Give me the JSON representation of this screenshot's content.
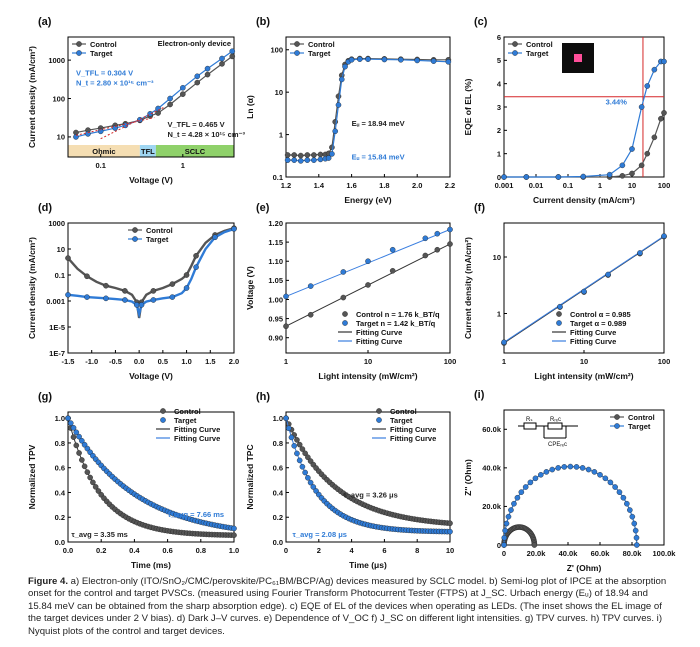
{
  "colors": {
    "control": "#555555",
    "target": "#2f7bd6",
    "fit_control": "#333333",
    "fit_target": "#3b7fe0",
    "ohmic": "#f5deb3",
    "tfl": "#9fd6f2",
    "sclc": "#8fd16a",
    "red": "#d62728"
  },
  "chart_data": [
    {
      "id": "a",
      "panel_label": "(a)",
      "type": "line",
      "title": "Electron-only device",
      "xlabel": "Voltage (V)",
      "ylabel": "Current density (mA/cm²)",
      "xscale": "log",
      "yscale": "log",
      "xlim": [
        0.04,
        4.2
      ],
      "ylim": [
        3,
        4000
      ],
      "xticks": [
        0.1,
        1
      ],
      "xtick_labels": [
        "0.1",
        "1"
      ],
      "yticks": [
        10,
        100,
        1000
      ],
      "ytick_labels": [
        "10",
        "100",
        "1000"
      ],
      "legend": [
        "Control",
        "Target"
      ],
      "legend_position": "top-left",
      "series": [
        {
          "name": "Control",
          "x": [
            0.05,
            0.07,
            0.1,
            0.15,
            0.2,
            0.3,
            0.4,
            0.5,
            0.7,
            1.0,
            1.5,
            2.0,
            3.0,
            4.0
          ],
          "y": [
            13,
            15,
            17,
            20,
            22,
            27,
            35,
            42,
            70,
            130,
            260,
            420,
            800,
            1250
          ]
        },
        {
          "name": "Target",
          "x": [
            0.05,
            0.07,
            0.1,
            0.15,
            0.2,
            0.3,
            0.4,
            0.5,
            0.7,
            1.0,
            1.5,
            2.0,
            3.0,
            4.0
          ],
          "y": [
            10,
            12,
            14,
            17,
            20,
            28,
            40,
            55,
            100,
            190,
            380,
            600,
            1100,
            1700
          ]
        }
      ],
      "regions": [
        {
          "label": "Ohmic",
          "from": 0.04,
          "to": 0.3
        },
        {
          "label": "TFL",
          "from": 0.3,
          "to": 0.47
        },
        {
          "label": "SCLC",
          "from": 0.47,
          "to": 4.2
        }
      ],
      "annotations": [
        {
          "lines": [
            "V_TFL = 0.304 V",
            "N_t = 2.80 × 10¹⁵ cm⁻³"
          ],
          "color": "target",
          "x": 0.055,
          "y": 400
        },
        {
          "lines": [
            "V_TFL = 0.465 V",
            "N_t = 4.28 × 10¹⁵ cm⁻³"
          ],
          "color": "control",
          "x": 0.65,
          "y": 18
        }
      ]
    },
    {
      "id": "b",
      "panel_label": "(b)",
      "type": "scatter",
      "xlabel": "Energy (eV)",
      "ylabel": "Ln (α)",
      "yscale": "log",
      "xlim": [
        1.2,
        2.2
      ],
      "ylim": [
        0.1,
        200
      ],
      "xticks": [
        1.2,
        1.4,
        1.6,
        1.8,
        2.0,
        2.2
      ],
      "xtick_labels": [
        "1.2",
        "1.4",
        "1.6",
        "1.8",
        "2.0",
        "2.2"
      ],
      "yticks": [
        0.1,
        1,
        10,
        100
      ],
      "ytick_labels": [
        "0.1",
        "1",
        "10",
        "100"
      ],
      "legend": [
        "Control",
        "Target"
      ],
      "legend_position": "top-left",
      "series": [
        {
          "name": "Control",
          "x": [
            1.21,
            1.25,
            1.29,
            1.33,
            1.37,
            1.41,
            1.44,
            1.46,
            1.48,
            1.5,
            1.52,
            1.54,
            1.56,
            1.58,
            1.6,
            1.65,
            1.7,
            1.8,
            1.9,
            2.0,
            2.1,
            2.19
          ],
          "y": [
            0.33,
            0.33,
            0.32,
            0.33,
            0.33,
            0.34,
            0.34,
            0.36,
            0.5,
            2,
            8,
            25,
            45,
            55,
            60,
            62,
            62,
            61,
            60,
            59,
            58,
            58
          ]
        },
        {
          "name": "Target",
          "x": [
            1.21,
            1.25,
            1.29,
            1.33,
            1.37,
            1.41,
            1.44,
            1.46,
            1.48,
            1.5,
            1.52,
            1.54,
            1.56,
            1.58,
            1.6,
            1.65,
            1.7,
            1.8,
            1.9,
            2.0,
            2.1,
            2.19
          ],
          "y": [
            0.25,
            0.25,
            0.24,
            0.25,
            0.25,
            0.26,
            0.27,
            0.28,
            0.35,
            1.2,
            5,
            20,
            40,
            52,
            58,
            60,
            60,
            59,
            58,
            56,
            54,
            52
          ]
        }
      ],
      "annotations": [
        {
          "lines": [
            "Eᵤ = 18.94 meV"
          ],
          "color": "control",
          "x": 1.6,
          "y": 1.6
        },
        {
          "lines": [
            "Eᵤ = 15.84 meV"
          ],
          "color": "target",
          "x": 1.6,
          "y": 0.26
        }
      ]
    },
    {
      "id": "c",
      "panel_label": "(c)",
      "type": "line",
      "xlabel": "Current density (mA/cm²)",
      "ylabel": "EQE of EL (%)",
      "xscale": "log",
      "xlim": [
        0.001,
        100
      ],
      "ylim": [
        0,
        6
      ],
      "xticks": [
        0.001,
        0.01,
        0.1,
        1,
        10,
        100
      ],
      "xtick_labels": [
        "0.001",
        "0.01",
        "0.1",
        "1",
        "10",
        "100"
      ],
      "yticks": [
        0,
        1,
        2,
        3,
        4,
        5,
        6
      ],
      "ytick_labels": [
        "0",
        "1",
        "2",
        "3",
        "4",
        "5",
        "6"
      ],
      "legend": [
        "Control",
        "Target"
      ],
      "legend_position": "top-left",
      "series": [
        {
          "name": "Control",
          "x": [
            0.001,
            0.005,
            0.05,
            0.3,
            2,
            5,
            10,
            20,
            30,
            50,
            80,
            100
          ],
          "y": [
            0,
            0,
            0,
            0,
            0,
            0.05,
            0.15,
            0.5,
            1.0,
            1.7,
            2.5,
            2.75
          ]
        },
        {
          "name": "Target",
          "x": [
            0.001,
            0.005,
            0.05,
            0.3,
            2,
            5,
            10,
            20,
            30,
            50,
            80,
            100
          ],
          "y": [
            0,
            0,
            0,
            0.02,
            0.1,
            0.5,
            1.2,
            3.0,
            3.9,
            4.6,
            4.95,
            4.95
          ]
        }
      ],
      "reference_lines": [
        {
          "axis": "y",
          "value": 3.44
        },
        {
          "axis": "x",
          "value": 22
        }
      ],
      "annotations": [
        {
          "lines": [
            "3.44%"
          ],
          "color": "target",
          "x": 1.5,
          "y": 3.1
        }
      ],
      "inset": "EL image of the target device (pink square on black)"
    },
    {
      "id": "d",
      "panel_label": "(d)",
      "type": "line",
      "xlabel": "Voltage (V)",
      "ylabel": "Current density (mA/cm²)",
      "yscale": "log",
      "xlim": [
        -1.5,
        2.0
      ],
      "ylim": [
        1e-07,
        1000
      ],
      "xticks": [
        -1.5,
        -1.0,
        -0.5,
        0.0,
        0.5,
        1.0,
        1.5,
        2.0
      ],
      "xtick_labels": [
        "-1.5",
        "-1.0",
        "-0.5",
        "0.0",
        "0.5",
        "1.0",
        "1.5",
        "2.0"
      ],
      "yticks": [
        1e-07,
        1e-05,
        0.001,
        0.1,
        10,
        1000
      ],
      "ytick_labels": [
        "1E-7",
        "1E-5",
        "0.001",
        "0.1",
        "10",
        "1000"
      ],
      "legend": [
        "Control",
        "Target"
      ],
      "legend_position": "top-center",
      "series": [
        {
          "name": "Control",
          "x": [
            -1.5,
            -1.3,
            -1.1,
            -0.9,
            -0.7,
            -0.5,
            -0.3,
            -0.15,
            -0.05,
            0.0,
            0.05,
            0.15,
            0.3,
            0.5,
            0.7,
            0.9,
            1.0,
            1.1,
            1.2,
            1.4,
            1.6,
            1.8,
            2.0
          ],
          "y": [
            2,
            0.3,
            0.08,
            0.03,
            0.015,
            0.01,
            0.006,
            0.003,
            0.0008,
            5e-05,
            0.0008,
            0.003,
            0.006,
            0.01,
            0.02,
            0.05,
            0.1,
            0.5,
            3,
            30,
            120,
            250,
            400
          ]
        },
        {
          "name": "Target",
          "x": [
            -1.5,
            -1.3,
            -1.1,
            -0.9,
            -0.7,
            -0.5,
            -0.3,
            -0.15,
            -0.05,
            0.0,
            0.05,
            0.15,
            0.3,
            0.5,
            0.7,
            0.9,
            1.0,
            1.1,
            1.2,
            1.4,
            1.6,
            1.8,
            2.0
          ],
          "y": [
            0.003,
            0.0025,
            0.002,
            0.0018,
            0.0016,
            0.0014,
            0.0012,
            0.0009,
            0.0005,
            0.0001,
            0.0005,
            0.0009,
            0.0012,
            0.0016,
            0.002,
            0.004,
            0.01,
            0.05,
            0.4,
            10,
            80,
            200,
            350
          ]
        }
      ]
    },
    {
      "id": "e",
      "panel_label": "(e)",
      "type": "scatter",
      "xlabel": "Light intensity (mW/cm²)",
      "ylabel": "Voltage (V)",
      "xscale": "log",
      "xlim": [
        1,
        100
      ],
      "ylim": [
        0.86,
        1.2
      ],
      "xticks": [
        1,
        10,
        100
      ],
      "xtick_labels": [
        "1",
        "10",
        "100"
      ],
      "yticks": [
        0.9,
        0.95,
        1.0,
        1.05,
        1.1,
        1.15,
        1.2
      ],
      "ytick_labels": [
        "0.90",
        "0.95",
        "1.00",
        "1.05",
        "1.10",
        "1.15",
        "1.20"
      ],
      "legend": [
        "Control n = 1.76 k_BT/q",
        "Target n = 1.42 k_BT/q",
        "Fitting Curve",
        "Fitting Curve"
      ],
      "legend_position": "bottom-right",
      "series": [
        {
          "name": "Control",
          "x": [
            1,
            2,
            5,
            10,
            20,
            50,
            70,
            100
          ],
          "y": [
            0.93,
            0.96,
            1.005,
            1.038,
            1.075,
            1.115,
            1.13,
            1.145
          ]
        },
        {
          "name": "Target",
          "x": [
            1,
            2,
            5,
            10,
            20,
            50,
            70,
            100
          ],
          "y": [
            1.008,
            1.035,
            1.072,
            1.1,
            1.13,
            1.16,
            1.172,
            1.183
          ]
        }
      ],
      "fits": [
        {
          "name": "Control",
          "x": [
            1,
            100
          ],
          "y": [
            0.93,
            1.145
          ]
        },
        {
          "name": "Target",
          "x": [
            1,
            100
          ],
          "y": [
            1.008,
            1.183
          ]
        }
      ]
    },
    {
      "id": "f",
      "panel_label": "(f)",
      "type": "scatter",
      "xlabel": "Light intensity (mW/cm²)",
      "ylabel": "Current density (mA/cm²)",
      "xscale": "log",
      "yscale": "log",
      "xlim": [
        1,
        100
      ],
      "ylim": [
        0.2,
        40
      ],
      "xticks": [
        1,
        10,
        100
      ],
      "xtick_labels": [
        "1",
        "10",
        "100"
      ],
      "yticks": [
        1,
        10
      ],
      "ytick_labels": [
        "1",
        "10"
      ],
      "legend": [
        "Control α = 0.985",
        "Target  α = 0.989",
        "Fitting Curve",
        "Fitting Curve"
      ],
      "legend_position": "bottom-right",
      "series": [
        {
          "name": "Control",
          "x": [
            1,
            5,
            10,
            20,
            50,
            100
          ],
          "y": [
            0.3,
            1.3,
            2.4,
            4.8,
            11.5,
            23
          ]
        },
        {
          "name": "Target",
          "x": [
            1,
            5,
            10,
            20,
            50,
            100
          ],
          "y": [
            0.31,
            1.32,
            2.45,
            4.9,
            11.8,
            23.5
          ]
        }
      ],
      "fits": [
        {
          "name": "Control",
          "x": [
            1,
            100
          ],
          "y": [
            0.3,
            23
          ]
        },
        {
          "name": "Target",
          "x": [
            1,
            100
          ],
          "y": [
            0.31,
            23.5
          ]
        }
      ]
    },
    {
      "id": "g",
      "panel_label": "(g)",
      "type": "scatter",
      "xlabel": "Time (ms)",
      "ylabel": "Normalized TPV",
      "xlim": [
        0,
        1.0
      ],
      "ylim": [
        0,
        1.05
      ],
      "xticks": [
        0,
        0.2,
        0.4,
        0.6,
        0.8,
        1.0
      ],
      "xtick_labels": [
        "0.0",
        "0.2",
        "0.4",
        "0.6",
        "0.8",
        "1.0"
      ],
      "yticks": [
        0,
        0.2,
        0.4,
        0.6,
        0.8,
        1.0
      ],
      "ytick_labels": [
        "0.0",
        "0.2",
        "0.4",
        "0.6",
        "0.8",
        "1.0"
      ],
      "legend": [
        "Control",
        "Target",
        "Fitting Curve",
        "Fitting Curve"
      ],
      "legend_position": "top-right",
      "series": [
        {
          "name": "Control",
          "decay_tau": 0.19,
          "x_end": 1.0,
          "y0": 1.0,
          "floor": 0.05
        },
        {
          "name": "Target",
          "decay_tau": 0.4,
          "x_end": 1.0,
          "y0": 1.0,
          "floor": 0.03
        }
      ],
      "annotations": [
        {
          "lines": [
            "τ_avg = 7.66 ms"
          ],
          "color": "target",
          "x": 0.6,
          "y": 0.2
        },
        {
          "lines": [
            "τ_avg = 3.35 ms"
          ],
          "color": "control",
          "x": 0.02,
          "y": 0.04
        }
      ]
    },
    {
      "id": "h",
      "panel_label": "(h)",
      "type": "scatter",
      "xlabel": "Time (μs)",
      "ylabel": "Normalized TPC",
      "xlim": [
        0,
        10
      ],
      "ylim": [
        0,
        1.05
      ],
      "xticks": [
        0,
        2,
        4,
        6,
        8,
        10
      ],
      "xtick_labels": [
        "0",
        "2",
        "4",
        "6",
        "8",
        "10"
      ],
      "yticks": [
        0,
        0.2,
        0.4,
        0.6,
        0.8,
        1.0
      ],
      "ytick_labels": [
        "0.0",
        "0.2",
        "0.4",
        "0.6",
        "0.8",
        "1.0"
      ],
      "legend": [
        "Control",
        "Target",
        "Fitting Curve",
        "Fitting Curve"
      ],
      "legend_position": "top-right",
      "series": [
        {
          "name": "Control",
          "decay_tau": 3.0,
          "x_end": 10,
          "y0": 1.0,
          "floor": 0.12
        },
        {
          "name": "Target",
          "decay_tau": 1.8,
          "x_end": 10,
          "y0": 1.0,
          "floor": 0.08
        }
      ],
      "annotations": [
        {
          "lines": [
            "τ_avg = 3.26 μs"
          ],
          "color": "control",
          "x": 3.5,
          "y": 0.36
        },
        {
          "lines": [
            "τ_avg = 2.08 μs"
          ],
          "color": "target",
          "x": 0.4,
          "y": 0.04
        }
      ]
    },
    {
      "id": "i",
      "panel_label": "(i)",
      "type": "scatter",
      "xlabel": "Z' (Ohm)",
      "ylabel": "Z'' (Ohm)",
      "xlim": [
        0,
        100000
      ],
      "ylim": [
        0,
        70000
      ],
      "xticks": [
        0,
        20000,
        40000,
        60000,
        80000,
        100000
      ],
      "xtick_labels": [
        "0",
        "20.0k",
        "40.0k",
        "60.0k",
        "80.0k",
        "100.0k"
      ],
      "yticks": [
        0,
        20000,
        40000,
        60000
      ],
      "ytick_labels": [
        "0",
        "20.0k",
        "40.0k",
        "60.0k"
      ],
      "legend": [
        "Control",
        "Target"
      ],
      "legend_position": "top-right",
      "series": [
        {
          "name": "Control",
          "semicircle_from": 0,
          "semicircle_to": 19000
        },
        {
          "name": "Target",
          "semicircle_from": 0,
          "semicircle_to": 83000
        }
      ],
      "inset_labels": [
        "Rₛ",
        "Rᵣₑc",
        "CPEᵣₑc"
      ]
    }
  ],
  "caption": {
    "label": "Figure 4.",
    "text": " a) Electron-only (ITO/SnO₂/CMC/perovskite/PC₆₁BM/BCP/Ag) devices measured by SCLC model. b) Semi-log plot of IPCE at the absorption onset for the control and target PVSCs. (measured using Fourier Transform Photocurrent Tester (FTPS) at J_SC. Urbach energy (Eᵤ) of 18.94 and 15.84 meV can be obtained from the sharp absorption edge). c) EQE of EL of the devices when operating as LEDs. (The inset shows the EL image of the target devices under 2 V bias). d) Dark J–V curves. e) Dependence of V_OC f) J_SC on different light intensities. g) TPV curves. h) TPV curves. i) Nyquist plots of the control and target devices."
  }
}
